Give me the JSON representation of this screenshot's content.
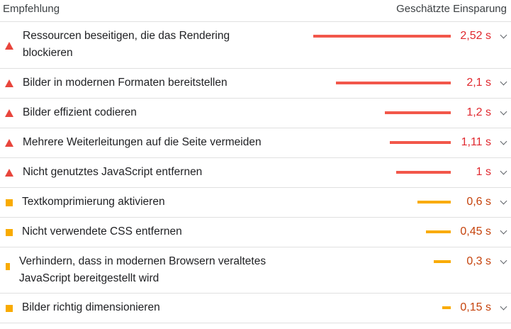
{
  "header": {
    "left": "Empfehlung",
    "right": "Geschätzte Einsparung"
  },
  "colors": {
    "high": "#e0282e",
    "high_bar": "#f2574a",
    "medium": "#c5420b",
    "medium_bar": "#f9ab00"
  },
  "rows": [
    {
      "title_l1": "Ressourcen beseitigen, die das Rendering",
      "title_l2": "blockieren",
      "value": "2,52 s",
      "severity": "high",
      "savings_seconds": 2.52
    },
    {
      "title_l1": "Bilder in modernen Formaten bereitstellen",
      "value": "2,1 s",
      "severity": "high",
      "savings_seconds": 2.1
    },
    {
      "title_l1": "Bilder effizient codieren",
      "value": "1,2 s",
      "severity": "high",
      "savings_seconds": 1.2
    },
    {
      "title_l1": "Mehrere Weiterleitungen auf die Seite vermeiden",
      "value": "1,11 s",
      "severity": "high",
      "savings_seconds": 1.11
    },
    {
      "title_l1": "Nicht genutztes JavaScript entfernen",
      "value": "1 s",
      "severity": "high",
      "savings_seconds": 1.0
    },
    {
      "title_l1": "Textkomprimierung aktivieren",
      "value": "0,6 s",
      "severity": "medium",
      "savings_seconds": 0.6
    },
    {
      "title_l1": "Nicht verwendete CSS entfernen",
      "value": "0,45 s",
      "severity": "medium",
      "savings_seconds": 0.45
    },
    {
      "title_l1": "Verhindern, dass in modernen Browsern veraltetes",
      "title_l2": "JavaScript bereitgestellt wird",
      "value": "0,3 s",
      "severity": "medium",
      "savings_seconds": 0.3
    },
    {
      "title_l1": "Bilder richtig dimensionieren",
      "value": "0,15 s",
      "severity": "medium",
      "savings_seconds": 0.15
    }
  ]
}
